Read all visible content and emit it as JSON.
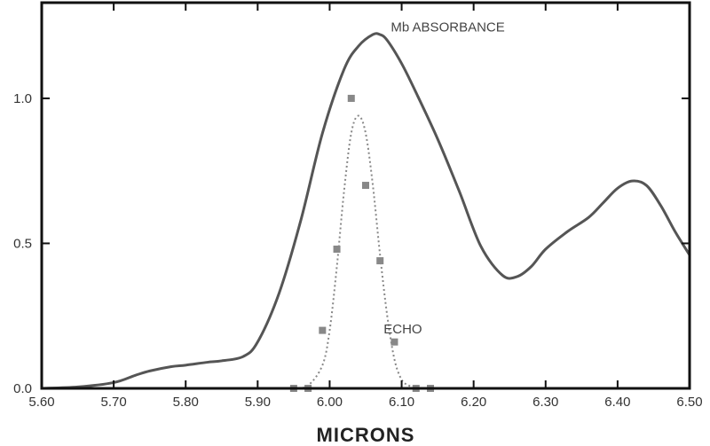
{
  "chart_data": {
    "type": "line",
    "title": "",
    "xlabel": "MICRONS",
    "ylabel": "",
    "xlim": [
      5.6,
      6.5
    ],
    "ylim": [
      0.0,
      1.33
    ],
    "grid": false,
    "x_ticks": [
      "5.60",
      "5.70",
      "5.80",
      "5.90",
      "6.00",
      "6.10",
      "6.20",
      "6.30",
      "6.40",
      "6.50"
    ],
    "y_ticks": [
      "0.0",
      "0.5",
      "1.0"
    ],
    "series": [
      {
        "name": "Mb ABSORBANCE",
        "style": "solid",
        "color": "#555555",
        "x": [
          5.6,
          5.65,
          5.7,
          5.73,
          5.75,
          5.78,
          5.8,
          5.83,
          5.85,
          5.88,
          5.9,
          5.93,
          5.96,
          5.99,
          6.02,
          6.04,
          6.06,
          6.07,
          6.08,
          6.1,
          6.12,
          6.15,
          6.18,
          6.21,
          6.24,
          6.26,
          6.28,
          6.3,
          6.33,
          6.36,
          6.38,
          6.4,
          6.42,
          6.44,
          6.46,
          6.48,
          6.5
        ],
        "y": [
          0.0,
          0.005,
          0.02,
          0.045,
          0.06,
          0.075,
          0.08,
          0.09,
          0.095,
          0.11,
          0.16,
          0.33,
          0.58,
          0.88,
          1.1,
          1.18,
          1.22,
          1.22,
          1.2,
          1.12,
          1.02,
          0.86,
          0.68,
          0.49,
          0.39,
          0.385,
          0.42,
          0.48,
          0.54,
          0.59,
          0.64,
          0.69,
          0.715,
          0.7,
          0.63,
          0.54,
          0.46
        ]
      },
      {
        "name": "ECHO",
        "style": "dotted",
        "color": "#888888",
        "x": [
          5.95,
          5.97,
          5.99,
          6.0,
          6.01,
          6.02,
          6.03,
          6.04,
          6.05,
          6.06,
          6.07,
          6.08,
          6.09,
          6.1,
          6.11,
          6.12
        ],
        "y": [
          0.0,
          0.01,
          0.08,
          0.2,
          0.42,
          0.68,
          0.88,
          0.94,
          0.88,
          0.7,
          0.46,
          0.25,
          0.1,
          0.03,
          0.01,
          0.0
        ]
      }
    ],
    "markers": {
      "name": "ECHO",
      "color": "#888888",
      "x": [
        5.95,
        5.97,
        5.99,
        6.01,
        6.03,
        6.05,
        6.07,
        6.09,
        6.12,
        6.14
      ],
      "y": [
        0.0,
        0.0,
        0.2,
        0.48,
        1.0,
        0.7,
        0.44,
        0.16,
        0.0,
        0.0
      ]
    },
    "annotations": [
      {
        "text": "Mb ABSORBANCE",
        "x": 6.085,
        "y": 1.23
      },
      {
        "text": "ECHO",
        "x": 6.075,
        "y": 0.19
      }
    ]
  }
}
